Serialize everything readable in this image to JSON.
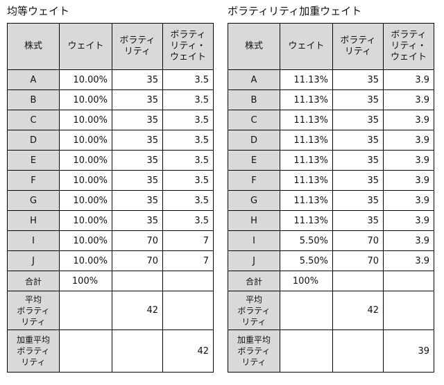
{
  "left": {
    "title": "均等ウェイト",
    "headers": {
      "stock": "株式",
      "weight": "ウェイト",
      "volatility": [
        "ボラティ",
        "リティ"
      ],
      "weighted_volatility": [
        "ボラティ",
        "リティ・",
        "ウェイト"
      ]
    },
    "rows": [
      {
        "stock": "A",
        "weight": "10.00%",
        "volatility": "35",
        "wv": "3.5"
      },
      {
        "stock": "B",
        "weight": "10.00%",
        "volatility": "35",
        "wv": "3.5"
      },
      {
        "stock": "C",
        "weight": "10.00%",
        "volatility": "35",
        "wv": "3.5"
      },
      {
        "stock": "D",
        "weight": "10.00%",
        "volatility": "35",
        "wv": "3.5"
      },
      {
        "stock": "E",
        "weight": "10.00%",
        "volatility": "35",
        "wv": "3.5"
      },
      {
        "stock": "F",
        "weight": "10.00%",
        "volatility": "35",
        "wv": "3.5"
      },
      {
        "stock": "G",
        "weight": "10.00%",
        "volatility": "35",
        "wv": "3.5"
      },
      {
        "stock": "H",
        "weight": "10.00%",
        "volatility": "35",
        "wv": "3.5"
      },
      {
        "stock": "I",
        "weight": "10.00%",
        "volatility": "70",
        "wv": "7"
      },
      {
        "stock": "J",
        "weight": "10.00%",
        "volatility": "70",
        "wv": "7"
      }
    ],
    "total": {
      "label": "合計",
      "weight": "100%"
    },
    "average": {
      "label": [
        "平均",
        "ボラティ",
        "リティ"
      ],
      "value": "42"
    },
    "weighted_average": {
      "label": [
        "加重平均",
        "ボラティ",
        "リティ"
      ],
      "value": "42"
    }
  },
  "right": {
    "title": "ボラティリティ加重ウェイト",
    "headers": {
      "stock": "株式",
      "weight": "ウェイト",
      "volatility": [
        "ボラティ",
        "リティ"
      ],
      "weighted_volatility": [
        "ボラティ",
        "リティ・",
        "ウェイト"
      ]
    },
    "rows": [
      {
        "stock": "A",
        "weight": "11.13%",
        "volatility": "35",
        "wv": "3.9"
      },
      {
        "stock": "B",
        "weight": "11.13%",
        "volatility": "35",
        "wv": "3.9"
      },
      {
        "stock": "C",
        "weight": "11.13%",
        "volatility": "35",
        "wv": "3.9"
      },
      {
        "stock": "D",
        "weight": "11.13%",
        "volatility": "35",
        "wv": "3.9"
      },
      {
        "stock": "E",
        "weight": "11.13%",
        "volatility": "35",
        "wv": "3.9"
      },
      {
        "stock": "F",
        "weight": "11.13%",
        "volatility": "35",
        "wv": "3.9"
      },
      {
        "stock": "G",
        "weight": "11.13%",
        "volatility": "35",
        "wv": "3.9"
      },
      {
        "stock": "H",
        "weight": "11.13%",
        "volatility": "35",
        "wv": "3.9"
      },
      {
        "stock": "I",
        "weight": "5.50%",
        "volatility": "70",
        "wv": "3.9"
      },
      {
        "stock": "J",
        "weight": "5.50%",
        "volatility": "70",
        "wv": "3.9"
      }
    ],
    "total": {
      "label": "合計",
      "weight": "100%"
    },
    "average": {
      "label": [
        "平均",
        "ボラティ",
        "リティ"
      ],
      "value": "42"
    },
    "weighted_average": {
      "label": [
        "加重平均",
        "ボラティ",
        "リティ"
      ],
      "value": "39"
    }
  }
}
